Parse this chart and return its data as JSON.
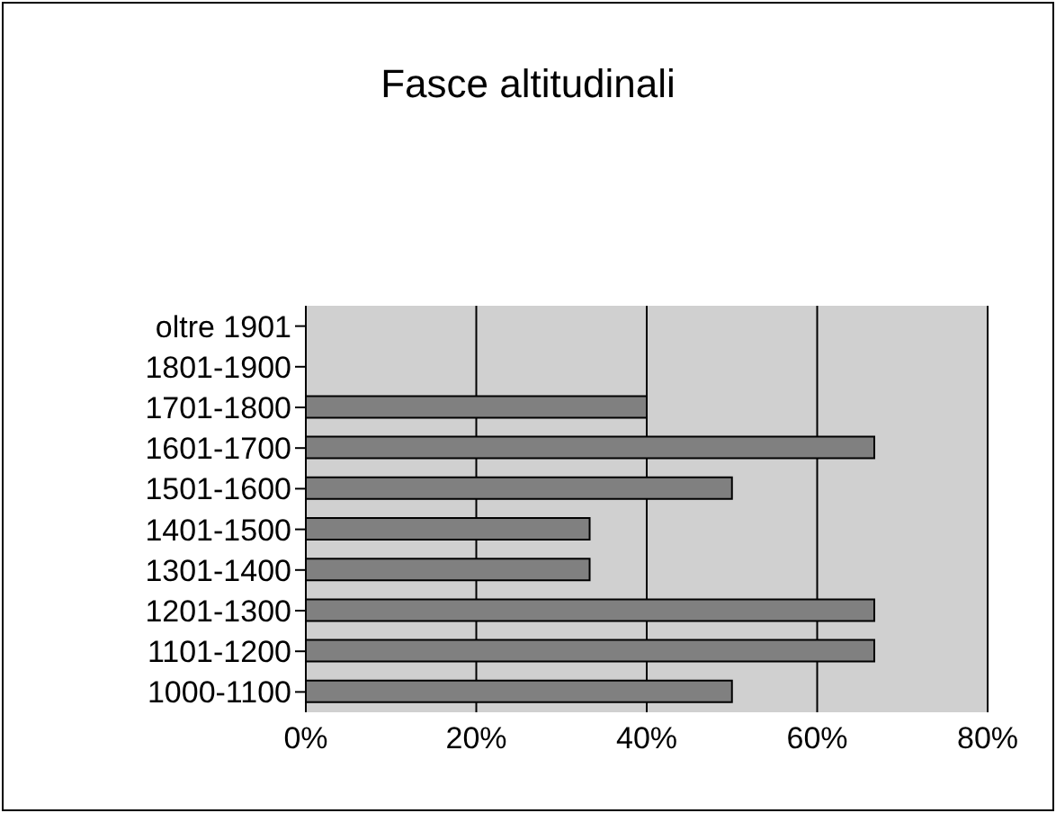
{
  "chart_data": {
    "type": "bar",
    "orientation": "horizontal",
    "title": "Fasce altitudinali",
    "categories": [
      "oltre 1901",
      "1801-1900",
      "1701-1800",
      "1601-1700",
      "1501-1600",
      "1401-1500",
      "1301-1400",
      "1201-1300",
      "1101-1200",
      "1000-1100"
    ],
    "values": [
      0,
      0,
      40,
      66.7,
      50,
      33.3,
      33.3,
      66.7,
      66.7,
      50
    ],
    "color": "#808080",
    "xlim": [
      0,
      80
    ],
    "xticks": [
      {
        "value": 0,
        "label": "0%"
      },
      {
        "value": 20,
        "label": "20%"
      },
      {
        "value": 40,
        "label": "40%"
      },
      {
        "value": 60,
        "label": "60%"
      },
      {
        "value": 80,
        "label": "80%"
      }
    ],
    "grid": "x"
  }
}
